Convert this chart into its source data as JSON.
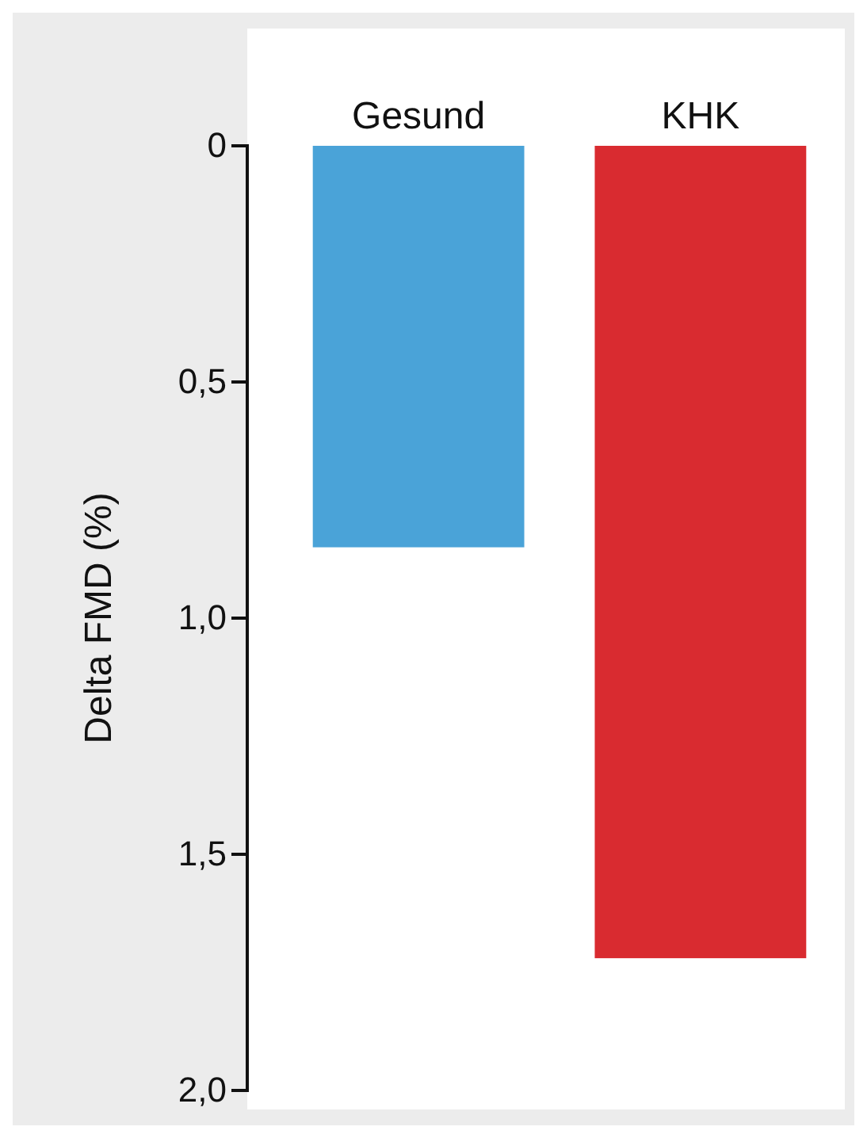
{
  "chart_data": {
    "type": "bar",
    "categories": [
      "Gesund",
      "KHK"
    ],
    "values": [
      0.85,
      1.72
    ],
    "colors": [
      "#4aa3d8",
      "#d92b30"
    ],
    "ylabel": "Delta FMD (%)",
    "ylim": [
      2,
      0
    ],
    "yticks": [
      {
        "value": 0,
        "label": "0"
      },
      {
        "value": 0.5,
        "label": "0,5"
      },
      {
        "value": 1,
        "label": "1,0"
      },
      {
        "value": 1.5,
        "label": "1,5"
      },
      {
        "value": 2,
        "label": "2,0"
      }
    ]
  }
}
